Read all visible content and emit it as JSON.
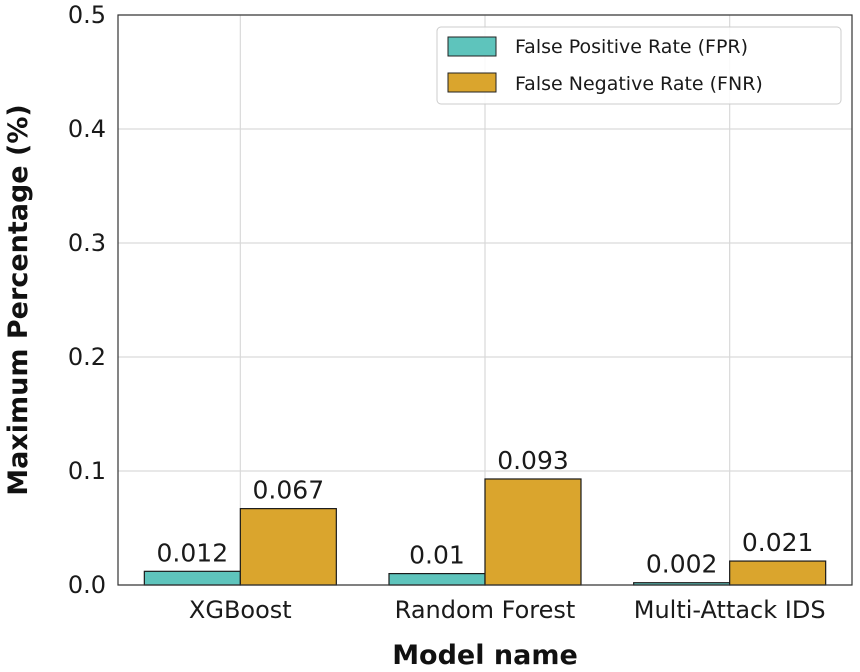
{
  "chart_data": {
    "type": "bar",
    "title": "",
    "xlabel": "Model name",
    "ylabel": "Maximum Percentage (%)",
    "ylim": [
      0,
      0.5
    ],
    "yticks": [
      "0.0",
      "0.1",
      "0.2",
      "0.3",
      "0.4",
      "0.5"
    ],
    "grid": true,
    "legend_position": "top-right",
    "categories": [
      "XGBoost",
      "Random Forest",
      "Multi-Attack IDS"
    ],
    "series": [
      {
        "name": "False Positive Rate (FPR)",
        "color": "#5ec4bc",
        "values": [
          0.012,
          0.01,
          0.002
        ],
        "labels": [
          "0.012",
          "0.01",
          "0.002"
        ]
      },
      {
        "name": "False Negative Rate (FNR)",
        "color": "#daa52d",
        "values": [
          0.067,
          0.093,
          0.021
        ],
        "labels": [
          "0.067",
          "0.093",
          "0.021"
        ]
      }
    ]
  }
}
